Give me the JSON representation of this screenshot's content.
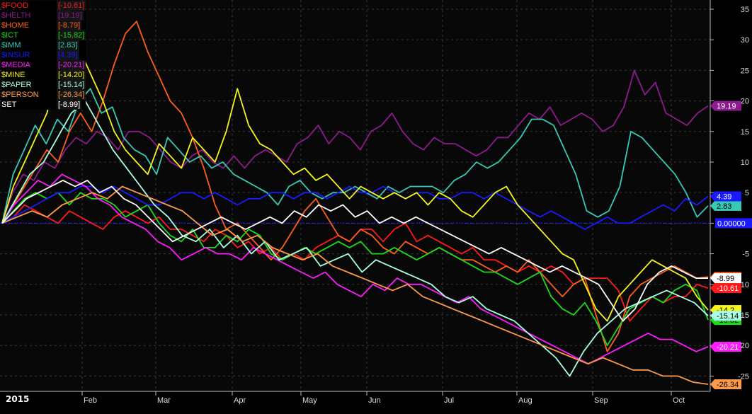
{
  "chart_data": {
    "type": "line",
    "year_label": "2015",
    "x_labels": [
      "Feb",
      "Mar",
      "Apr",
      "May",
      "Jun",
      "Jul",
      "Aug",
      "Sep",
      "Oct"
    ],
    "y_ticks": [
      35,
      30,
      25,
      20,
      15,
      10,
      5,
      0,
      -5,
      -10,
      -15,
      -20,
      -25
    ],
    "ylim": [
      -27.5,
      36.5
    ],
    "zero_label": "0.00000",
    "grid": true,
    "legend_position": "top-left",
    "series": [
      {
        "name": "$FOOD",
        "value_label": "[-10.61]",
        "last_label": "-10.61",
        "color": "#ff1a1a",
        "values": [
          0,
          1,
          3,
          2,
          1,
          0,
          2,
          1,
          0,
          -1,
          1,
          2,
          1,
          0,
          1,
          -1,
          -1,
          -2,
          -3,
          -1,
          -2,
          -4,
          -3,
          -5,
          -4,
          -6,
          -5,
          -6,
          -4,
          -3,
          -2,
          -3,
          -1,
          -1,
          -3,
          -1,
          0,
          -3,
          -2,
          -3,
          -4,
          -5,
          -4,
          -6,
          -6,
          -7,
          -8,
          -7,
          -8,
          -7,
          -8,
          -10,
          -9,
          -9,
          -9,
          -11,
          -16,
          -14,
          -12,
          -13,
          -12,
          -12,
          -10,
          -10.61
        ]
      },
      {
        "name": "$HELTH",
        "value_label": "[19.19]",
        "last_label": "19.19",
        "color": "#8e1a8e",
        "values": [
          0,
          5,
          8,
          7,
          10,
          9,
          12,
          14,
          13,
          15,
          14,
          12,
          15,
          15,
          14,
          12,
          10,
          9,
          11,
          12,
          10,
          9,
          11,
          9,
          11,
          12,
          11,
          10,
          13,
          14,
          16,
          13,
          15,
          14,
          12,
          15,
          16,
          18,
          15,
          13,
          12,
          14,
          13,
          13,
          12,
          11,
          12,
          14,
          14,
          16,
          18,
          17,
          19,
          16,
          17,
          18,
          17,
          15,
          16,
          19,
          25,
          21,
          23,
          18,
          17,
          16,
          18,
          19.19
        ]
      },
      {
        "name": "$HOME",
        "value_label": "[-8.79]",
        "last_label": "-8.79",
        "color": "#ff5e1a",
        "values": [
          0,
          3,
          6,
          9,
          12,
          10,
          15,
          18,
          15,
          20,
          26,
          31,
          33,
          28,
          24,
          20,
          18,
          14,
          9,
          3,
          -1,
          0,
          -2,
          -4,
          -6,
          -4,
          -1,
          2,
          4,
          1,
          -2,
          -3,
          -1,
          -2,
          -4,
          -5,
          -3,
          -4,
          -5,
          -4,
          -5,
          -6,
          -6,
          -7,
          -8,
          -7,
          -8,
          -6,
          -8,
          -10,
          -12,
          -10,
          -9,
          -15,
          -21,
          -18,
          -12,
          -10,
          -9,
          -8,
          -7,
          -8,
          -9,
          -8.79
        ]
      },
      {
        "name": "$ICT",
        "value_label": "[-15.82]",
        "last_label": "-15.82",
        "color": "#1adc1a",
        "values": [
          0,
          2,
          4,
          5,
          4,
          5,
          3,
          5,
          4,
          4,
          3,
          1,
          2,
          3,
          0,
          -2,
          -3,
          -1,
          -4,
          -4,
          -2,
          -3,
          -1,
          -2,
          -5,
          -6,
          -5,
          -4,
          -5,
          -4,
          -3,
          -4,
          -3,
          -5,
          -5,
          -4,
          -5,
          -6,
          -5,
          -4,
          -5,
          -6,
          -7,
          -8,
          -8,
          -9,
          -10,
          -9,
          -8,
          -12,
          -14,
          -15,
          -13,
          -16,
          -20,
          -17,
          -14,
          -13,
          -12,
          -13,
          -11,
          -10,
          -11,
          -15.82
        ]
      },
      {
        "name": "$IMM",
        "value_label": "[2.83]",
        "last_label": "2.83",
        "color": "#36c9b6",
        "values": [
          0,
          8,
          12,
          16,
          13,
          17,
          15,
          20,
          22,
          18,
          19,
          14,
          12,
          11,
          8,
          14,
          12,
          10,
          11,
          9,
          10,
          8,
          7,
          6,
          5,
          3,
          6,
          7,
          5,
          4,
          5,
          5,
          6,
          5,
          4,
          6,
          5,
          6,
          6,
          6,
          5,
          7,
          8,
          10,
          9,
          10,
          12,
          14,
          17,
          17,
          16,
          12,
          8,
          2,
          1,
          2,
          6,
          15,
          14,
          12,
          10,
          8,
          5,
          1,
          2.83
        ]
      },
      {
        "name": "$INSUR",
        "value_label": "[4.39]",
        "last_label": "4.39",
        "color": "#1a1aff",
        "values": [
          0,
          1,
          2,
          3,
          4,
          5,
          5,
          6,
          6,
          5,
          6,
          5,
          4,
          3,
          3,
          4,
          5,
          5,
          4,
          5,
          4,
          3,
          4,
          4,
          5,
          5,
          4,
          5,
          5,
          4,
          5,
          6,
          5,
          5,
          6,
          5,
          4,
          5,
          5,
          4,
          4,
          5,
          5,
          4,
          5,
          4,
          3,
          2,
          1,
          2,
          1,
          0,
          -1,
          0,
          1,
          0,
          0,
          1,
          2,
          3,
          2,
          4,
          3,
          4.39
        ]
      },
      {
        "name": "$MEDIA",
        "value_label": "[-20.21]",
        "last_label": "-20.21",
        "color": "#ff1aff",
        "values": [
          0,
          3,
          5,
          7,
          6,
          8,
          7,
          6,
          4,
          3,
          1,
          0,
          -1,
          -3,
          -4,
          -6,
          -5,
          -4,
          -5,
          -5,
          -6,
          -4,
          -5,
          -6,
          -7,
          -8,
          -9,
          -8,
          -10,
          -11,
          -12,
          -10,
          -11,
          -9,
          -10,
          -10,
          -11,
          -12,
          -13,
          -12,
          -14,
          -15,
          -16,
          -17,
          -18,
          -19,
          -20,
          -21,
          -22,
          -23,
          -22,
          -21,
          -20,
          -19,
          -18,
          -19,
          -19,
          -20,
          -21,
          -20.21
        ]
      },
      {
        "name": "$MINE",
        "value_label": "[-14.20]",
        "last_label": "-14.2",
        "color": "#f5f51a",
        "values": [
          0,
          6,
          10,
          14,
          18,
          25,
          32,
          28,
          24,
          20,
          15,
          12,
          10,
          8,
          13,
          11,
          9,
          14,
          12,
          10,
          15,
          22,
          16,
          13,
          12,
          10,
          8,
          9,
          7,
          8,
          6,
          4,
          6,
          5,
          4,
          5,
          4,
          5,
          3,
          5,
          4,
          2,
          1,
          3,
          5,
          6,
          3,
          1,
          -1,
          -3,
          -5,
          -6,
          -10,
          -14,
          -16,
          -12,
          -10,
          -8,
          -6,
          -7,
          -8,
          -9,
          -12,
          -14.2
        ]
      },
      {
        "name": "$PAPER",
        "value_label": "[-15.14]",
        "last_label": "-15.14",
        "color": "#a8ffe4",
        "values": [
          0,
          4,
          8,
          10,
          14,
          18,
          20,
          16,
          12,
          9,
          6,
          3,
          1,
          -2,
          -3,
          -1,
          -4,
          -2,
          -5,
          -3,
          -6,
          -5,
          -4,
          -7,
          -6,
          -5,
          -8,
          -6,
          -7,
          -8,
          -9,
          -10,
          -12,
          -13,
          -12,
          -14,
          -15,
          -16,
          -18,
          -20,
          -22,
          -25,
          -21,
          -18,
          -16,
          -14,
          -13,
          -12,
          -11,
          -12,
          -13,
          -15.14
        ]
      },
      {
        "name": "$PERSON",
        "value_label": "[-26.34]",
        "last_label": "-26.34",
        "color": "#ff9a4a",
        "values": [
          0,
          1,
          2,
          1,
          3,
          4,
          5,
          4,
          6,
          5,
          4,
          3,
          2,
          0,
          -2,
          -1,
          -3,
          -2,
          -4,
          -5,
          -6,
          -5,
          -7,
          -8,
          -9,
          -10,
          -11,
          -10,
          -12,
          -13,
          -14,
          -15,
          -16,
          -17,
          -18,
          -19,
          -20,
          -21,
          -22,
          -23,
          -22,
          -23,
          -24,
          -24,
          -25,
          -25,
          -26,
          -26.34
        ]
      },
      {
        "name": "SET",
        "value_label": "[-8.99]",
        "last_label": "-8.99",
        "color": "#ffffff",
        "values": [
          0,
          2,
          4,
          5,
          6,
          7,
          6,
          7,
          5,
          6,
          4,
          3,
          1,
          -1,
          -3,
          -2,
          -1,
          0,
          1,
          0,
          -1,
          0,
          1,
          0,
          2,
          1,
          3,
          2,
          3,
          1,
          2,
          0,
          1,
          0,
          1,
          0,
          -1,
          -2,
          -3,
          -4,
          -5,
          -4,
          -5,
          -6,
          -7,
          -8,
          -7,
          -8,
          -9,
          -10,
          -13,
          -16,
          -14,
          -10,
          -8,
          -7,
          -8,
          -9,
          -8.99
        ]
      }
    ]
  }
}
